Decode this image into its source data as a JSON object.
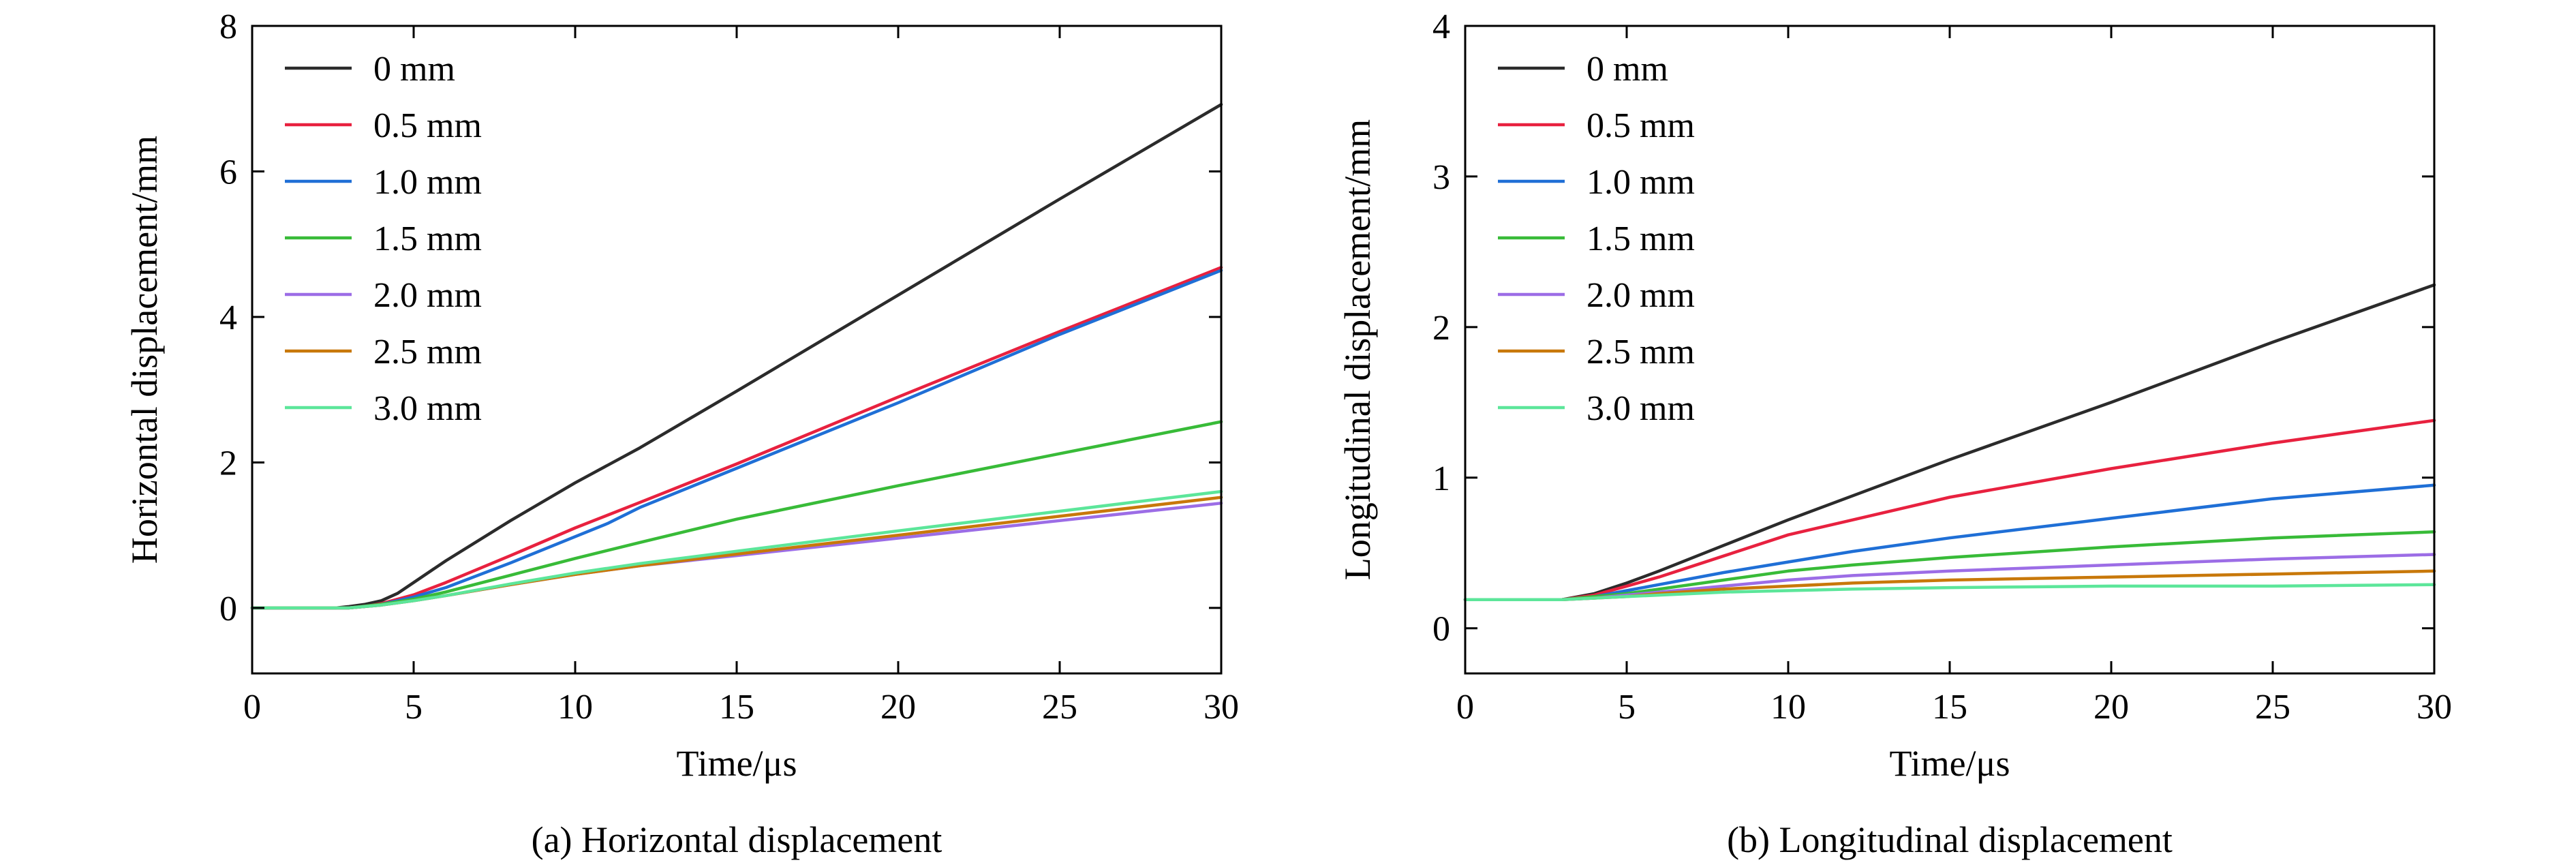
{
  "chart_data": [
    {
      "type": "line",
      "title": "",
      "caption": "(a) Horizontal displacement",
      "xlabel": "Time/μs",
      "ylabel": "Horizontal displacement/mm",
      "xlim": [
        0,
        30
      ],
      "ylim": [
        -0.9,
        8
      ],
      "xticks": [
        0,
        5,
        10,
        15,
        20,
        25,
        30
      ],
      "yticks": [
        0,
        2,
        4,
        6,
        8
      ],
      "grid": false,
      "legend_position": "top-left",
      "series": [
        {
          "name": "0 mm",
          "color": "#2b2b2b",
          "x": [
            0,
            2.6,
            3,
            3.5,
            4,
            4.5,
            5,
            6,
            8,
            10,
            12,
            15,
            20,
            25,
            30
          ],
          "y": [
            0,
            0,
            0.02,
            0.05,
            0.1,
            0.2,
            0.35,
            0.65,
            1.2,
            1.72,
            2.2,
            2.98,
            4.3,
            5.62,
            6.92
          ]
        },
        {
          "name": "0.5 mm",
          "color": "#e8213f",
          "x": [
            0,
            3,
            3.5,
            4,
            5,
            6,
            8,
            10,
            12,
            15,
            20,
            25,
            30
          ],
          "y": [
            0,
            0,
            0.02,
            0.06,
            0.18,
            0.35,
            0.72,
            1.1,
            1.45,
            1.98,
            2.9,
            3.8,
            4.68
          ]
        },
        {
          "name": "1.0 mm",
          "color": "#1f6fd6",
          "x": [
            0,
            3,
            3.5,
            4,
            5,
            6,
            8,
            10,
            11,
            12,
            15,
            20,
            25,
            30
          ],
          "y": [
            0,
            0,
            0.02,
            0.05,
            0.15,
            0.28,
            0.62,
            0.98,
            1.16,
            1.38,
            1.92,
            2.82,
            3.76,
            4.64
          ]
        },
        {
          "name": "1.5 mm",
          "color": "#38bb38",
          "x": [
            0,
            3,
            4,
            5,
            6,
            8,
            10,
            12,
            15,
            20,
            25,
            30
          ],
          "y": [
            0,
            0,
            0.05,
            0.12,
            0.22,
            0.45,
            0.68,
            0.9,
            1.22,
            1.68,
            2.12,
            2.56
          ]
        },
        {
          "name": "2.0 mm",
          "color": "#9c6de6",
          "x": [
            0,
            3,
            4,
            5,
            6,
            8,
            10,
            12,
            15,
            20,
            25,
            30
          ],
          "y": [
            0,
            0,
            0.04,
            0.1,
            0.17,
            0.32,
            0.46,
            0.58,
            0.72,
            0.96,
            1.2,
            1.44
          ]
        },
        {
          "name": "2.5 mm",
          "color": "#c8780a",
          "x": [
            0,
            3,
            4,
            5,
            6,
            8,
            10,
            12,
            15,
            20,
            25,
            30
          ],
          "y": [
            0,
            0,
            0.04,
            0.1,
            0.17,
            0.32,
            0.46,
            0.58,
            0.74,
            1.0,
            1.26,
            1.52
          ]
        },
        {
          "name": "3.0 mm",
          "color": "#5ce69a",
          "x": [
            0,
            3,
            4,
            5,
            6,
            8,
            10,
            12,
            15,
            20,
            25,
            30
          ],
          "y": [
            0,
            0,
            0.04,
            0.1,
            0.17,
            0.33,
            0.48,
            0.61,
            0.78,
            1.06,
            1.33,
            1.6
          ]
        }
      ]
    },
    {
      "type": "line",
      "title": "",
      "caption": "(b) Longitudinal displacement",
      "xlabel": "Time/μs",
      "ylabel": "Longitudinal displacement/mm",
      "xlim": [
        0,
        30
      ],
      "ylim": [
        -0.3,
        4
      ],
      "xticks": [
        0,
        5,
        10,
        15,
        20,
        25,
        30
      ],
      "yticks": [
        0,
        1,
        2,
        3,
        4
      ],
      "grid": false,
      "legend_position": "top-left",
      "series": [
        {
          "name": "0 mm",
          "color": "#2b2b2b",
          "x": [
            0,
            3,
            4,
            5,
            6,
            8,
            10,
            12,
            15,
            20,
            25,
            30
          ],
          "y": [
            0.19,
            0.19,
            0.23,
            0.3,
            0.38,
            0.55,
            0.72,
            0.88,
            1.12,
            1.5,
            1.9,
            2.28
          ]
        },
        {
          "name": "0.5 mm",
          "color": "#e8213f",
          "x": [
            0,
            3,
            4,
            5,
            6,
            8,
            10,
            12,
            15,
            20,
            25,
            30
          ],
          "y": [
            0.19,
            0.19,
            0.22,
            0.28,
            0.34,
            0.48,
            0.62,
            0.72,
            0.87,
            1.06,
            1.23,
            1.38
          ]
        },
        {
          "name": "1.0 mm",
          "color": "#1f6fd6",
          "x": [
            0,
            3,
            4,
            5,
            6,
            8,
            10,
            12,
            15,
            20,
            25,
            30
          ],
          "y": [
            0.19,
            0.19,
            0.21,
            0.25,
            0.29,
            0.37,
            0.44,
            0.51,
            0.6,
            0.73,
            0.86,
            0.95
          ]
        },
        {
          "name": "1.5 mm",
          "color": "#38bb38",
          "x": [
            0,
            3,
            4,
            5,
            6,
            8,
            10,
            12,
            15,
            20,
            25,
            30
          ],
          "y": [
            0.19,
            0.19,
            0.21,
            0.23,
            0.26,
            0.32,
            0.38,
            0.42,
            0.47,
            0.54,
            0.6,
            0.64
          ]
        },
        {
          "name": "2.0 mm",
          "color": "#9c6de6",
          "x": [
            0,
            3,
            4,
            5,
            6,
            8,
            10,
            12,
            15,
            20,
            25,
            30
          ],
          "y": [
            0.19,
            0.19,
            0.2,
            0.22,
            0.24,
            0.28,
            0.32,
            0.35,
            0.38,
            0.42,
            0.46,
            0.49
          ]
        },
        {
          "name": "2.5 mm",
          "color": "#c8780a",
          "x": [
            0,
            3,
            4,
            5,
            6,
            8,
            10,
            12,
            15,
            20,
            25,
            30
          ],
          "y": [
            0.19,
            0.19,
            0.2,
            0.21,
            0.23,
            0.26,
            0.28,
            0.3,
            0.32,
            0.34,
            0.36,
            0.38
          ]
        },
        {
          "name": "3.0 mm",
          "color": "#5ce69a",
          "x": [
            0,
            3,
            4,
            5,
            6,
            8,
            10,
            12,
            15,
            20,
            25,
            30
          ],
          "y": [
            0.19,
            0.19,
            0.2,
            0.21,
            0.22,
            0.24,
            0.25,
            0.26,
            0.27,
            0.28,
            0.28,
            0.29
          ]
        }
      ]
    }
  ]
}
